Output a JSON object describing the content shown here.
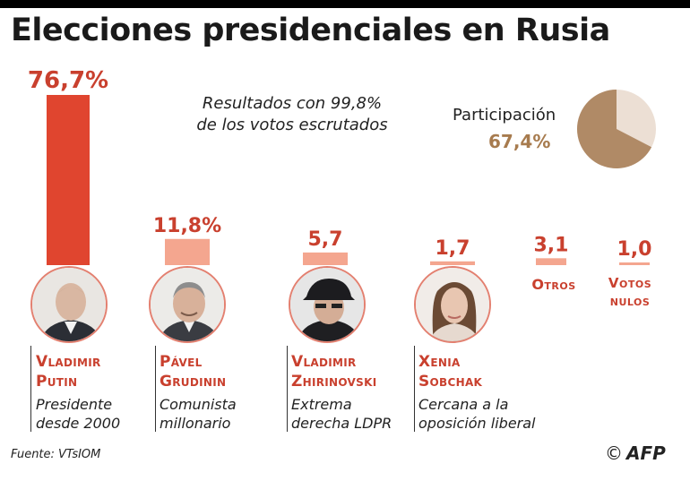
{
  "title": "Elecciones presidenciales en Rusia",
  "subtitle_line1": "Resultados con 99,8%",
  "subtitle_line2": "de los votos escrutados",
  "participation": {
    "label": "Participación",
    "value_text": "67,4%",
    "value": 67.4
  },
  "colors": {
    "bar_main": "#e0452f",
    "bar_light": "#f4a68f",
    "text_red": "#c9402e",
    "pie_dark": "#b08a66",
    "pie_light": "#ecdfd4"
  },
  "chart_data": {
    "type": "bar",
    "title": "Elecciones presidenciales en Rusia",
    "categories": [
      "Vladimir Putin",
      "Pável Grudinin",
      "Vladimir Zhirinovski",
      "Xenia Sobchak",
      "Otros",
      "Votos nulos"
    ],
    "values": [
      76.7,
      11.8,
      5.7,
      1.7,
      3.1,
      1.0
    ],
    "value_labels": [
      "76,7%",
      "11,8%",
      "5,7",
      "1,7",
      "3,1",
      "1,0"
    ],
    "unit": "%",
    "ylim": [
      0,
      76.7
    ]
  },
  "candidates": [
    {
      "first": "Vladimir",
      "last": "Putin",
      "desc1": "Presidente",
      "desc2": "desde 2000"
    },
    {
      "first": "Pável",
      "last": "Grudinin",
      "desc1": "Comunista",
      "desc2": "millonario"
    },
    {
      "first": "Vladimir",
      "last": "Zhirinovski",
      "desc1": "Extrema",
      "desc2": "derecha LDPR"
    },
    {
      "first": "Xenia",
      "last": "Sobchak",
      "desc1": "Cercana a la",
      "desc2": "oposición liberal"
    }
  ],
  "others": {
    "label": "Otros",
    "null_line1": "Votos",
    "null_line2": "nulos"
  },
  "source": "Fuente: VTsIOM",
  "credit": "AFP",
  "copyright_symbol": "©"
}
